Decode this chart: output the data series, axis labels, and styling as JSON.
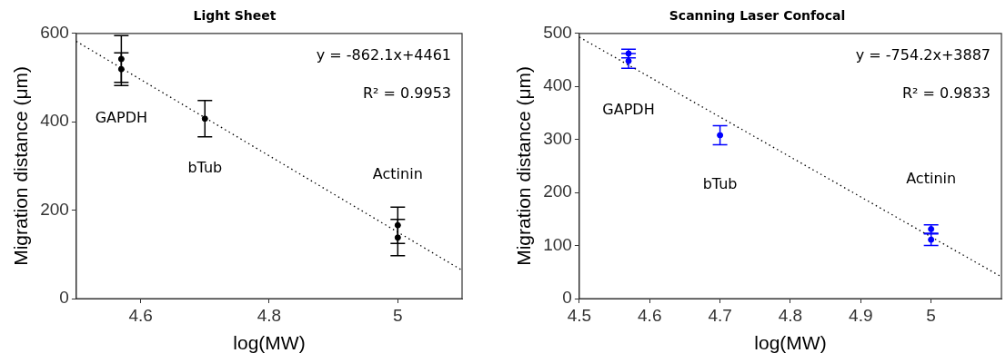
{
  "chart_data": [
    {
      "type": "scatter",
      "title": "Light Sheet",
      "xlabel": "log(MW)",
      "ylabel": "Migration distance (μm)",
      "xlim": [
        4.5,
        5.1
      ],
      "xticks": [
        4.6,
        4.8,
        5
      ],
      "ylim": [
        0,
        600
      ],
      "yticks": [
        0,
        200,
        400,
        600
      ],
      "grid": false,
      "legend": false,
      "marker": "circle",
      "series": [
        {
          "type": "scatter",
          "color": "#000000",
          "x": [
            4.57,
            4.57,
            4.7,
            5,
            5
          ],
          "values": [
            542,
            519,
            407,
            166,
            138
          ],
          "errors": [
            53,
            37,
            41,
            41,
            41
          ]
        },
        {
          "type": "line",
          "color": "#000000",
          "x": [
            4.5,
            5.1
          ],
          "values": [
            582,
            64
          ],
          "line_style": "dotted",
          "marker": "none"
        }
      ],
      "annotations": [
        "y = -862.1x+4461",
        "R² = 0.9953",
        {
          "text": "GAPDH",
          "x": 4.57,
          "y": 519
        },
        {
          "text": "bTub",
          "x": 4.7,
          "y": 407
        },
        {
          "text": "Actinin",
          "x": 5,
          "y": 166
        }
      ]
    },
    {
      "type": "scatter",
      "title": "Scanning Laser Confocal",
      "xlabel": "log(MW)",
      "ylabel": "Migration distance (μm)",
      "xlim": [
        4.5,
        5.1
      ],
      "xticks": [
        4.5,
        4.6,
        4.7,
        4.8,
        4.9,
        5
      ],
      "ylim": [
        0,
        500
      ],
      "yticks": [
        0,
        100,
        200,
        300,
        400,
        500
      ],
      "grid": false,
      "legend": false,
      "marker": "circle",
      "series": [
        {
          "type": "scatter",
          "color": "#0000ff",
          "x": [
            4.57,
            4.57,
            4.7,
            5,
            5
          ],
          "values": [
            462,
            448,
            308,
            131,
            111
          ],
          "errors": [
            8,
            14,
            18,
            8,
            11
          ]
        },
        {
          "type": "line",
          "color": "#000000",
          "x": [
            4.5,
            5.1
          ],
          "values": [
            493,
            41
          ],
          "line_style": "dotted",
          "marker": "none"
        }
      ],
      "annotations": [
        "y = -754.2x+3887",
        "R² = 0.9833",
        {
          "text": "GAPDH",
          "x": 4.57,
          "y": 448
        },
        {
          "text": "bTub",
          "x": 4.7,
          "y": 308
        },
        {
          "text": "Actinin",
          "x": 5,
          "y": 131
        }
      ]
    }
  ]
}
